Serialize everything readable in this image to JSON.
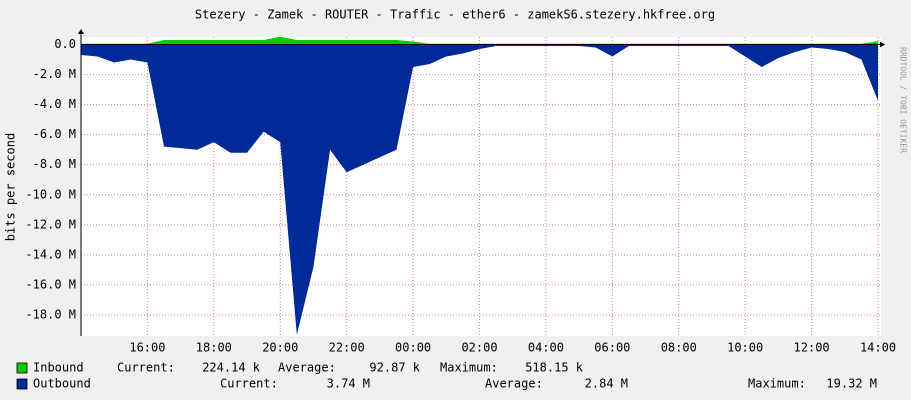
{
  "chart_data": {
    "type": "area",
    "title": "Stezery - Zamek - ROUTER - Traffic - ether6 - zamekS6.stezery.hkfree.org",
    "y_label": "bits per second",
    "watermark": "RRDTOOL / TOBI OETIKER",
    "x": [
      "14:00",
      "14:30",
      "15:00",
      "15:30",
      "16:00",
      "16:30",
      "17:00",
      "17:30",
      "18:00",
      "18:30",
      "19:00",
      "19:30",
      "20:00",
      "20:30",
      "21:00",
      "21:30",
      "22:00",
      "22:30",
      "23:00",
      "23:30",
      "00:00",
      "00:30",
      "01:00",
      "01:30",
      "02:00",
      "02:30",
      "03:00",
      "03:30",
      "04:00",
      "04:30",
      "05:00",
      "05:30",
      "06:00",
      "06:30",
      "07:00",
      "07:30",
      "08:00",
      "08:30",
      "09:00",
      "09:30",
      "10:00",
      "10:30",
      "11:00",
      "11:30",
      "12:00",
      "12:30",
      "13:00",
      "13:30",
      "14:00"
    ],
    "xticks": [
      "16:00",
      "18:00",
      "20:00",
      "22:00",
      "00:00",
      "02:00",
      "04:00",
      "06:00",
      "08:00",
      "10:00",
      "12:00",
      "14:00"
    ],
    "ylim": [
      -19400000,
      500000
    ],
    "yticks": [
      {
        "value": 0,
        "label": "0.0"
      },
      {
        "value": -2000000,
        "label": "-2.0 M"
      },
      {
        "value": -4000000,
        "label": "-4.0 M"
      },
      {
        "value": -6000000,
        "label": "-6.0 M"
      },
      {
        "value": -8000000,
        "label": "-8.0 M"
      },
      {
        "value": -10000000,
        "label": "-10.0 M"
      },
      {
        "value": -12000000,
        "label": "-12.0 M"
      },
      {
        "value": -14000000,
        "label": "-14.0 M"
      },
      {
        "value": -16000000,
        "label": "-16.0 M"
      },
      {
        "value": -18000000,
        "label": "-18.0 M"
      }
    ],
    "grid": true,
    "series": [
      {
        "name": "Inbound",
        "color": "#00cf00",
        "values": [
          50000,
          50000,
          50000,
          50000,
          50000,
          300000,
          300000,
          300000,
          300000,
          300000,
          300000,
          300000,
          518150,
          300000,
          300000,
          300000,
          300000,
          300000,
          300000,
          300000,
          200000,
          50000,
          50000,
          50000,
          50000,
          50000,
          50000,
          50000,
          50000,
          50000,
          50000,
          50000,
          50000,
          50000,
          50000,
          50000,
          50000,
          50000,
          50000,
          50000,
          50000,
          50000,
          50000,
          50000,
          50000,
          50000,
          50000,
          50000,
          224140
        ],
        "stats": [
          "Current:",
          "224.14 k",
          "Average:",
          "92.87 k",
          "Maximum:",
          "518.15 k"
        ]
      },
      {
        "name": "Outbound",
        "color": "#002a97",
        "values": [
          -700000,
          -800000,
          -1200000,
          -1000000,
          -1200000,
          -6800000,
          -6900000,
          -7000000,
          -6500000,
          -7200000,
          -7200000,
          -5800000,
          -6500000,
          -19320000,
          -14800000,
          -7000000,
          -8500000,
          -8000000,
          -7500000,
          -7000000,
          -1500000,
          -1300000,
          -800000,
          -600000,
          -300000,
          -100000,
          -100000,
          -100000,
          -100000,
          -100000,
          -100000,
          -200000,
          -800000,
          -100000,
          -100000,
          -100000,
          -100000,
          -100000,
          -100000,
          -100000,
          -800000,
          -1500000,
          -900000,
          -500000,
          -200000,
          -300000,
          -500000,
          -1000000,
          -3740000
        ],
        "stats": [
          "Current:",
          "3.74 M",
          "Average:",
          "2.84 M",
          "Maximum:",
          "19.32 M"
        ]
      }
    ]
  }
}
